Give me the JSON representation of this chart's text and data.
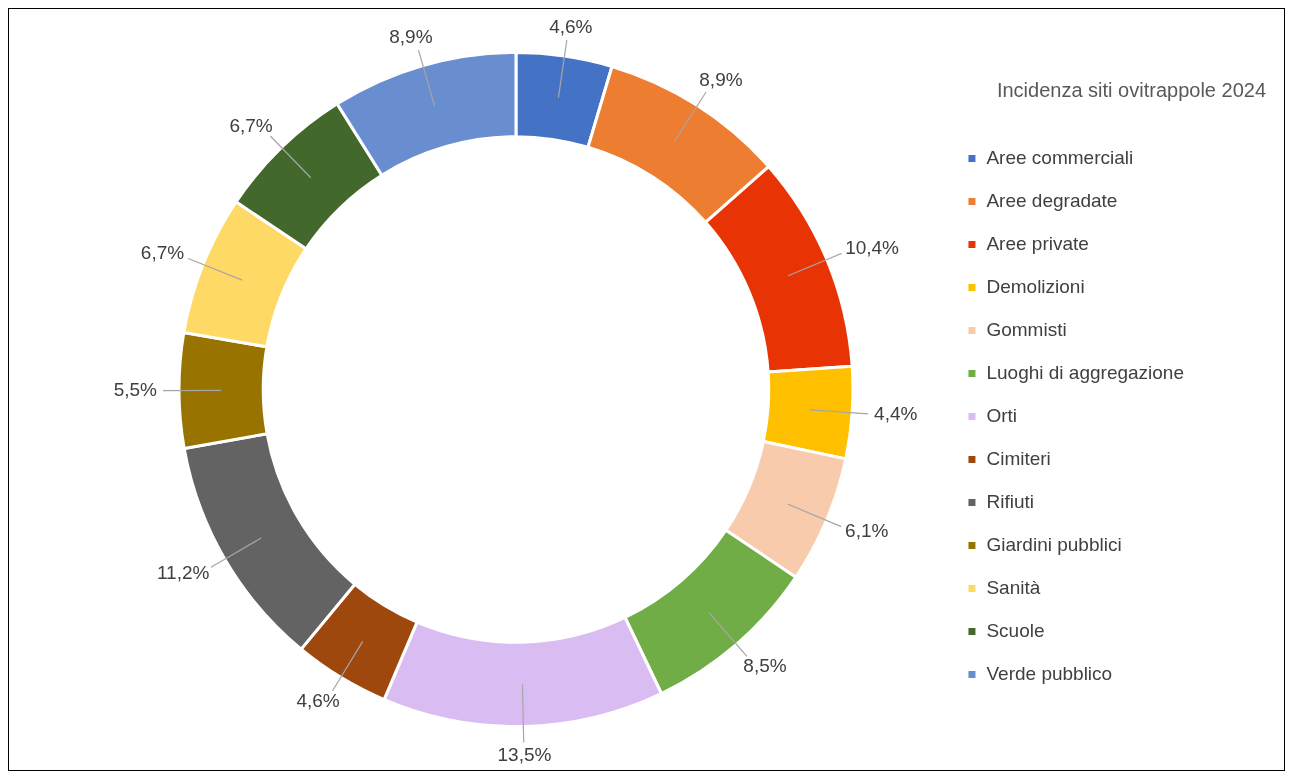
{
  "chart_data": {
    "type": "donut",
    "legend_title": "Incidenza siti ovitrappole 2024",
    "legend": "right",
    "categories": [
      "Aree commerciali",
      "Aree degradate",
      "Aree private",
      "Demolizioni",
      "Gommisti",
      "Luoghi di aggregazione",
      "Orti",
      "Cimiteri",
      "Rifiuti",
      "Giardini pubblici",
      "Sanità",
      "Scuole",
      "Verde pubblico"
    ],
    "values": [
      4.6,
      8.9,
      10.4,
      4.4,
      6.1,
      8.5,
      13.5,
      4.6,
      11.2,
      5.5,
      6.7,
      6.7,
      8.9
    ],
    "value_labels": [
      "4,6%",
      "8,9%",
      "10,4%",
      "4,4%",
      "6,1%",
      "8,5%",
      "13,5%",
      "4,6%",
      "11,2%",
      "5,5%",
      "6,7%",
      "6,7%",
      "8,9%"
    ],
    "colors": [
      "#4472c4",
      "#ed7d31",
      "#e83404",
      "#ffc000",
      "#f8cbad",
      "#70ad47",
      "#d9bdf2",
      "#9e480e",
      "#636363",
      "#997300",
      "#ffd966",
      "#43682b",
      "#698ed0"
    ]
  }
}
